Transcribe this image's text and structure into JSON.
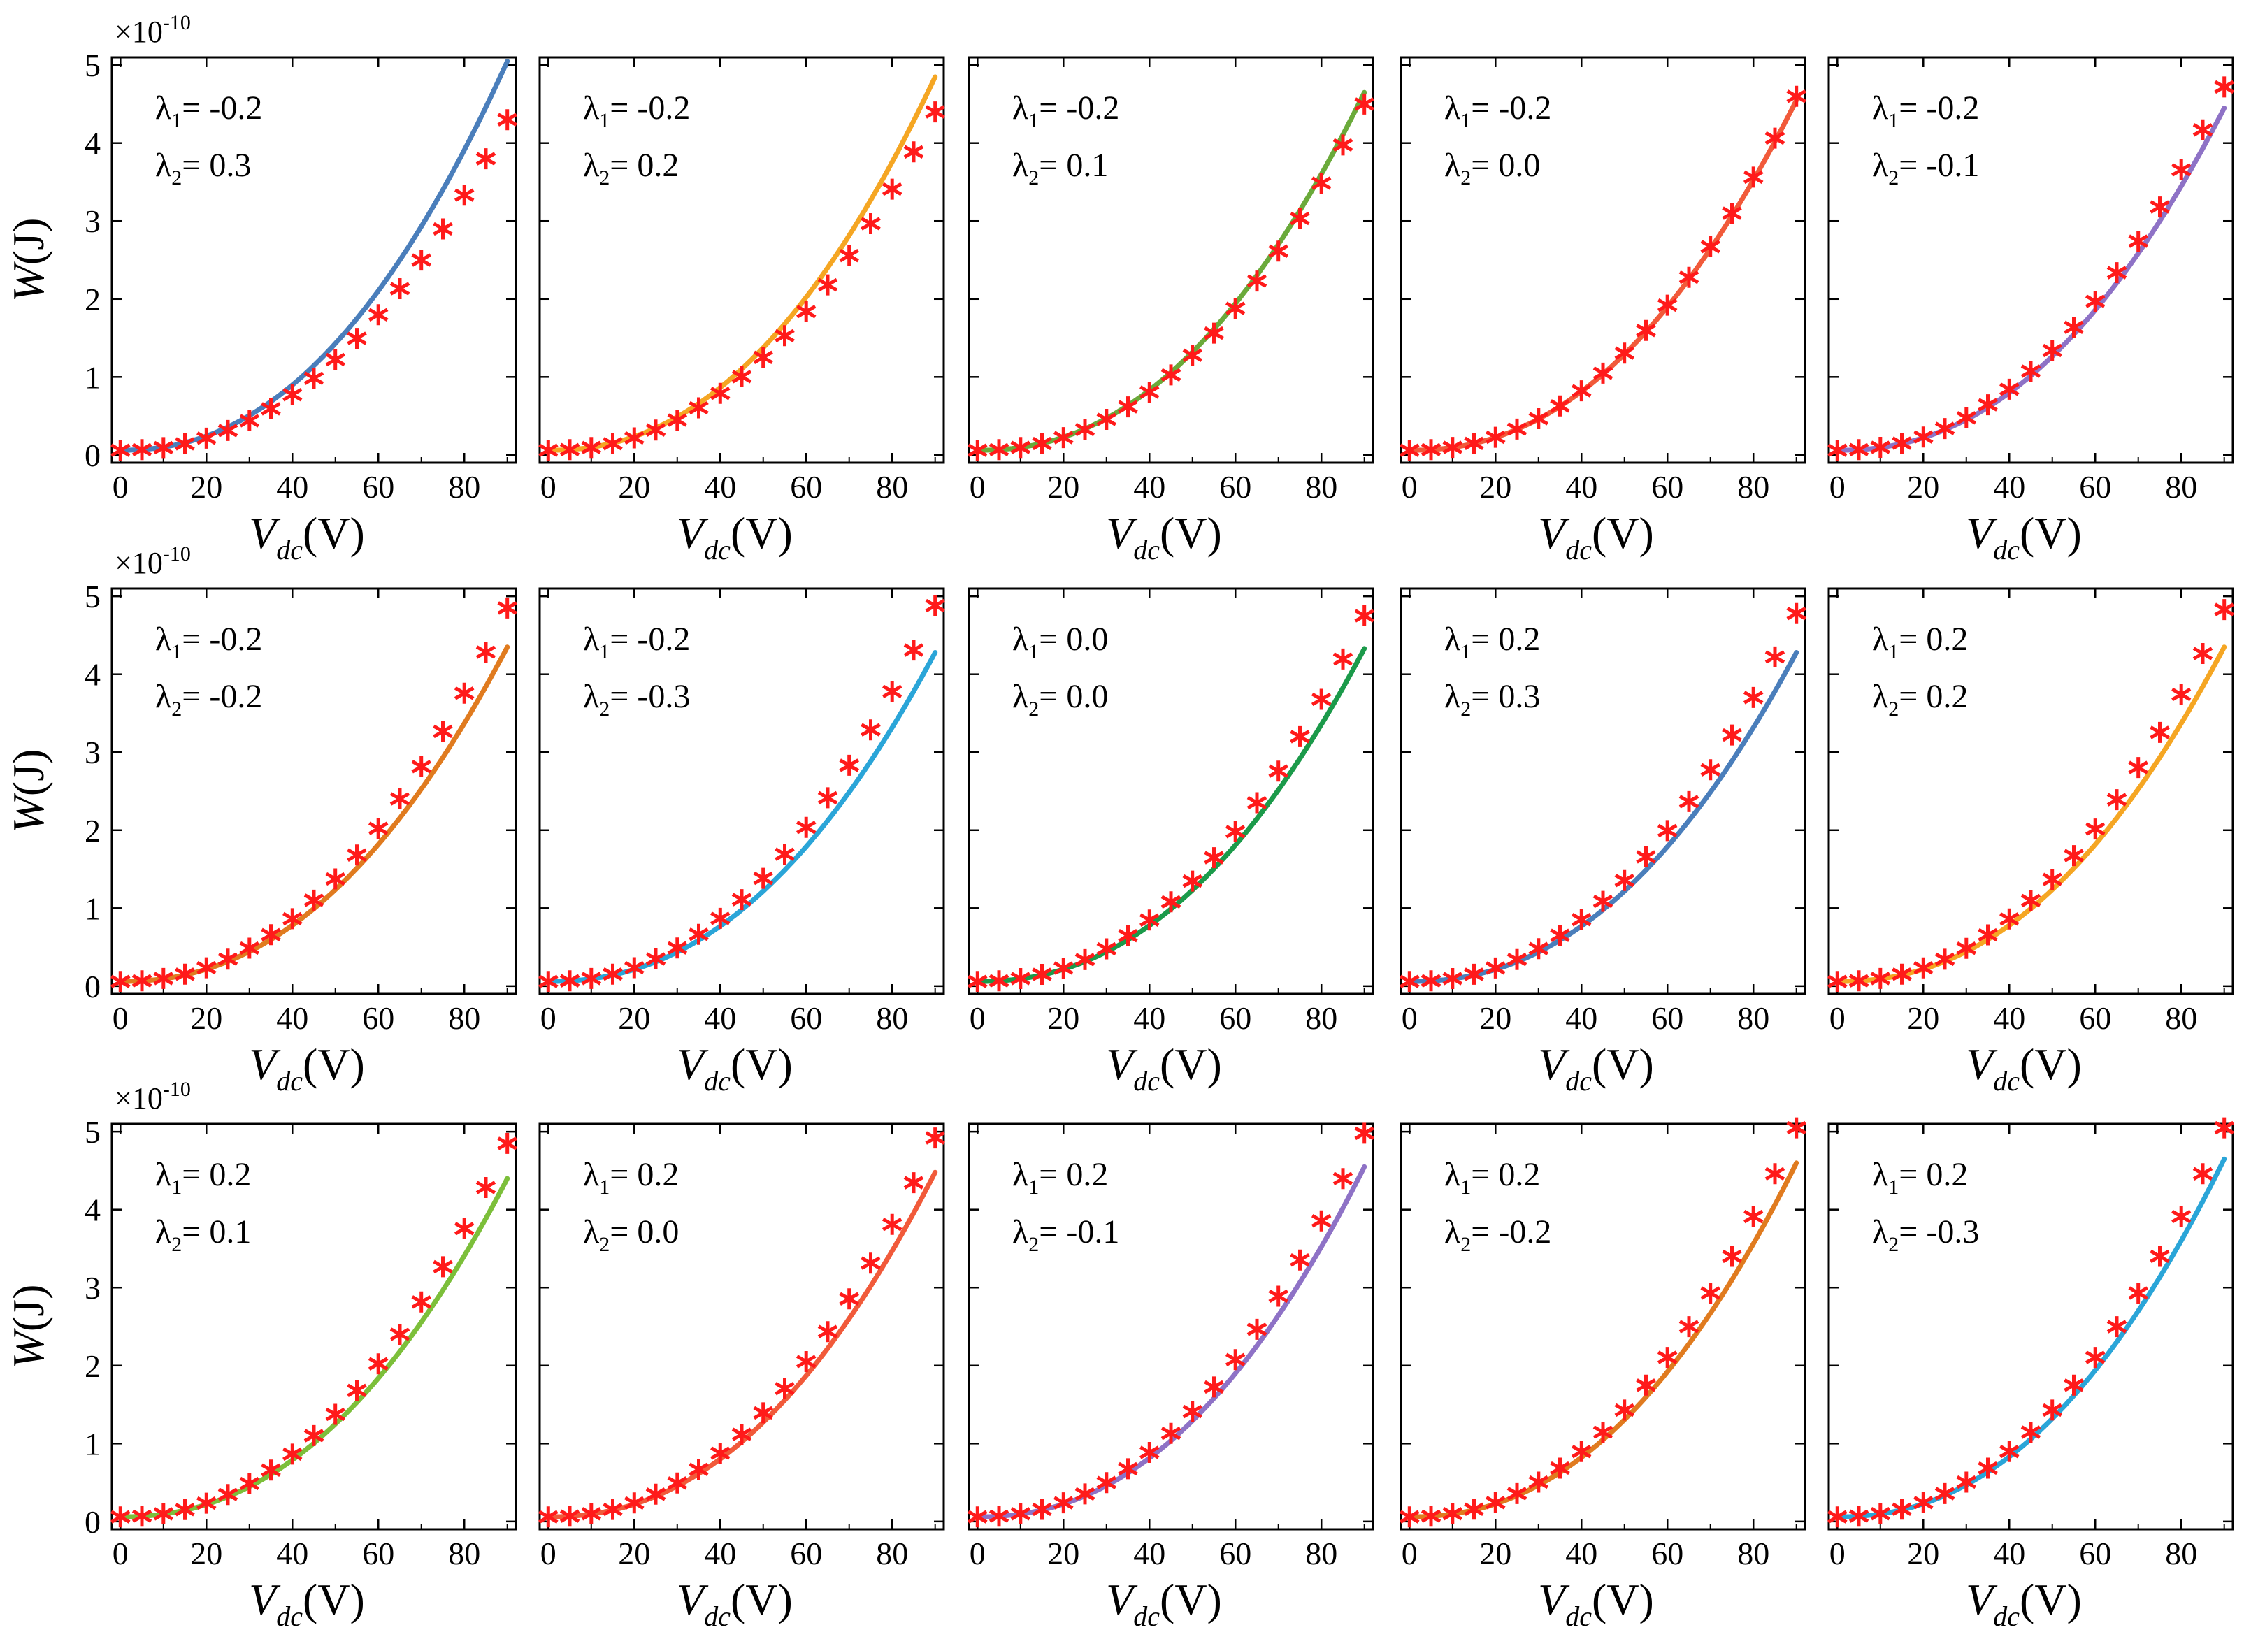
{
  "figure": {
    "x_label": {
      "var": "V",
      "sub": "dc",
      "unit": "(V)"
    },
    "y_label": {
      "var": "W",
      "unit": "(J)"
    },
    "exponent": {
      "base": "×10",
      "power": "-10"
    },
    "lambda1_prefix": "λ",
    "lambda1_sub": "1",
    "lambda2_prefix": "λ",
    "lambda2_sub": "2",
    "eq": "= "
  },
  "chart_data": [
    {
      "type": "scatter",
      "row": 0,
      "col": 0,
      "lambda1": "-0.2",
      "lambda2": "0.3",
      "line_color": "#4a7ebb",
      "curve_at_90": 5.05,
      "star_at_90": 4.3,
      "xlim": [
        -2,
        92
      ],
      "ylim": [
        -0.1,
        5.1
      ],
      "xticks": [
        "0",
        "20",
        "40",
        "60",
        "80"
      ],
      "yticks": [
        "0",
        "1",
        "2",
        "3",
        "4",
        "5"
      ],
      "xlabel": "V_dc (V)",
      "ylabel": "W (J)"
    },
    {
      "type": "scatter",
      "row": 0,
      "col": 1,
      "lambda1": "-0.2",
      "lambda2": "0.2",
      "line_color": "#f5a623",
      "curve_at_90": 4.85,
      "star_at_90": 4.4,
      "xlim": [
        -2,
        92
      ],
      "ylim": [
        -0.1,
        5.1
      ],
      "xticks": [
        "0",
        "20",
        "40",
        "60",
        "80"
      ],
      "yticks": [],
      "xlabel": "V_dc (V)"
    },
    {
      "type": "scatter",
      "row": 0,
      "col": 2,
      "lambda1": "-0.2",
      "lambda2": "0.1",
      "line_color": "#6aaa3a",
      "curve_at_90": 4.65,
      "star_at_90": 4.5,
      "xlim": [
        -2,
        92
      ],
      "ylim": [
        -0.1,
        5.1
      ],
      "xticks": [
        "0",
        "20",
        "40",
        "60",
        "80"
      ],
      "yticks": [],
      "xlabel": "V_dc (V)"
    },
    {
      "type": "scatter",
      "row": 0,
      "col": 3,
      "lambda1": "-0.2",
      "lambda2": "0.0",
      "line_color": "#f15a3a",
      "curve_at_90": 4.55,
      "star_at_90": 4.6,
      "xlim": [
        -2,
        92
      ],
      "ylim": [
        -0.1,
        5.1
      ],
      "xticks": [
        "0",
        "20",
        "40",
        "60",
        "80"
      ],
      "yticks": [],
      "xlabel": "V_dc (V)"
    },
    {
      "type": "scatter",
      "row": 0,
      "col": 4,
      "lambda1": "-0.2",
      "lambda2": "-0.1",
      "line_color": "#8e72c6",
      "curve_at_90": 4.45,
      "star_at_90": 4.72,
      "xlim": [
        -2,
        92
      ],
      "ylim": [
        -0.1,
        5.1
      ],
      "xticks": [
        "0",
        "20",
        "40",
        "60",
        "80"
      ],
      "yticks": [],
      "xlabel": "V_dc (V)"
    },
    {
      "type": "scatter",
      "row": 1,
      "col": 0,
      "lambda1": "-0.2",
      "lambda2": "-0.2",
      "line_color": "#e07b1f",
      "curve_at_90": 4.35,
      "star_at_90": 4.85,
      "xlim": [
        -2,
        92
      ],
      "ylim": [
        -0.1,
        5.1
      ],
      "xticks": [
        "0",
        "20",
        "40",
        "60",
        "80"
      ],
      "yticks": [
        "0",
        "1",
        "2",
        "3",
        "4",
        "5"
      ],
      "xlabel": "V_dc (V)",
      "ylabel": "W (J)"
    },
    {
      "type": "scatter",
      "row": 1,
      "col": 1,
      "lambda1": "-0.2",
      "lambda2": "-0.3",
      "line_color": "#2aa5d8",
      "curve_at_90": 4.28,
      "star_at_90": 4.88,
      "xlim": [
        -2,
        92
      ],
      "ylim": [
        -0.1,
        5.1
      ],
      "xticks": [
        "0",
        "20",
        "40",
        "60",
        "80"
      ],
      "yticks": [],
      "xlabel": "V_dc (V)"
    },
    {
      "type": "scatter",
      "row": 1,
      "col": 2,
      "lambda1": "0.0",
      "lambda2": "0.0",
      "line_color": "#1b9a4a",
      "curve_at_90": 4.33,
      "star_at_90": 4.75,
      "xlim": [
        -2,
        92
      ],
      "ylim": [
        -0.1,
        5.1
      ],
      "xticks": [
        "0",
        "20",
        "40",
        "60",
        "80"
      ],
      "yticks": [],
      "xlabel": "V_dc (V)"
    },
    {
      "type": "scatter",
      "row": 1,
      "col": 3,
      "lambda1": "0.2",
      "lambda2": "0.3",
      "line_color": "#4a7ebb",
      "curve_at_90": 4.28,
      "star_at_90": 4.78,
      "xlim": [
        -2,
        92
      ],
      "ylim": [
        -0.1,
        5.1
      ],
      "xticks": [
        "0",
        "20",
        "40",
        "60",
        "80"
      ],
      "yticks": [],
      "xlabel": "V_dc (V)"
    },
    {
      "type": "scatter",
      "row": 1,
      "col": 4,
      "lambda1": "0.2",
      "lambda2": "0.2",
      "line_color": "#f5a623",
      "curve_at_90": 4.35,
      "star_at_90": 4.83,
      "xlim": [
        -2,
        92
      ],
      "ylim": [
        -0.1,
        5.1
      ],
      "xticks": [
        "0",
        "20",
        "40",
        "60",
        "80"
      ],
      "yticks": [],
      "xlabel": "V_dc (V)"
    },
    {
      "type": "scatter",
      "row": 2,
      "col": 0,
      "lambda1": "0.2",
      "lambda2": "0.1",
      "line_color": "#7cbf3a",
      "curve_at_90": 4.4,
      "star_at_90": 4.85,
      "xlim": [
        -2,
        92
      ],
      "ylim": [
        -0.1,
        5.1
      ],
      "xticks": [
        "0",
        "20",
        "40",
        "60",
        "80"
      ],
      "yticks": [
        "0",
        "1",
        "2",
        "3",
        "4",
        "5"
      ],
      "xlabel": "V_dc (V)",
      "ylabel": "W (J)"
    },
    {
      "type": "scatter",
      "row": 2,
      "col": 1,
      "lambda1": "0.2",
      "lambda2": "0.0",
      "line_color": "#f15a3a",
      "curve_at_90": 4.48,
      "star_at_90": 4.92,
      "xlim": [
        -2,
        92
      ],
      "ylim": [
        -0.1,
        5.1
      ],
      "xticks": [
        "0",
        "20",
        "40",
        "60",
        "80"
      ],
      "yticks": [],
      "xlabel": "V_dc (V)"
    },
    {
      "type": "scatter",
      "row": 2,
      "col": 2,
      "lambda1": "0.2",
      "lambda2": "-0.1",
      "line_color": "#8e72c6",
      "curve_at_90": 4.55,
      "star_at_90": 4.98,
      "xlim": [
        -2,
        92
      ],
      "ylim": [
        -0.1,
        5.1
      ],
      "xticks": [
        "0",
        "20",
        "40",
        "60",
        "80"
      ],
      "yticks": [],
      "xlabel": "V_dc (V)"
    },
    {
      "type": "scatter",
      "row": 2,
      "col": 3,
      "lambda1": "0.2",
      "lambda2": "-0.2",
      "line_color": "#e07b1f",
      "curve_at_90": 4.6,
      "star_at_90": 5.05,
      "xlim": [
        -2,
        92
      ],
      "ylim": [
        -0.1,
        5.1
      ],
      "xticks": [
        "0",
        "20",
        "40",
        "60",
        "80"
      ],
      "yticks": [],
      "xlabel": "V_dc (V)"
    },
    {
      "type": "scatter",
      "row": 2,
      "col": 4,
      "lambda1": "0.2",
      "lambda2": "-0.3",
      "line_color": "#2aa5d8",
      "curve_at_90": 4.65,
      "star_at_90": 5.05,
      "xlim": [
        -2,
        92
      ],
      "ylim": [
        -0.1,
        5.1
      ],
      "xticks": [
        "0",
        "20",
        "40",
        "60",
        "80"
      ],
      "yticks": [],
      "xlabel": "V_dc (V)"
    }
  ],
  "series_style": {
    "star_color": "#ff1a1a",
    "star_x_step": 5,
    "star_x_max": 90,
    "curve_exponent": 2.2
  }
}
